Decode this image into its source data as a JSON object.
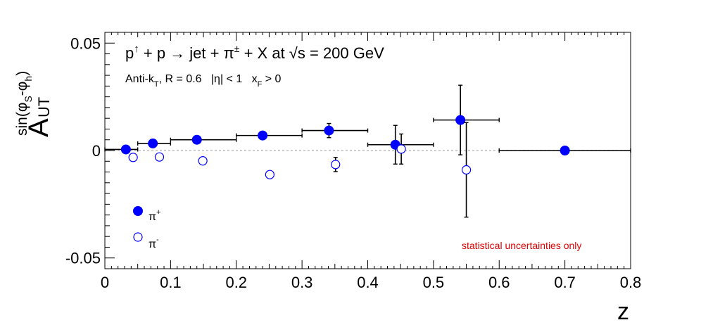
{
  "chart_data": {
    "type": "scatter",
    "title": "p↑ + p → jet + π± + X at √s = 200 GeV",
    "title_parts": {
      "p": "p",
      "uparrow": "↑",
      "plus_p": " + p ",
      "arrow": "→",
      "jet": " jet + π",
      "pm": "±",
      "rest": " + X at ",
      "sqrt": "√s = 200 GeV"
    },
    "subtitle": "Anti-kT, R = 0.6   |η| < 1   xF > 0",
    "subtitle_parts": {
      "antik": "Anti-k",
      "t": "T",
      "r": ", R = 0.6   |η| < 1   x",
      "f": "F",
      "gt": " > 0"
    },
    "xlabel": "z",
    "ylabel": "A_UT^{sin(φS-φh)}",
    "ylabel_parts": {
      "A": "A",
      "UT": "UT",
      "sin": "sin(φ",
      "S": "S",
      "mid": "-φ",
      "h": "h",
      "close": ")"
    },
    "xlim": [
      0,
      0.8
    ],
    "ylim": [
      -0.055,
      0.055
    ],
    "x_ticks": [
      0,
      0.1,
      0.2,
      0.3,
      0.4,
      0.5,
      0.6,
      0.7,
      0.8
    ],
    "x_tick_labels": [
      "0",
      "0.1",
      "0.2",
      "0.3",
      "0.4",
      "0.5",
      "0.6",
      "0.7",
      "0.8"
    ],
    "y_ticks": [
      -0.05,
      0,
      0.05
    ],
    "y_tick_labels": [
      "-0.05",
      "0",
      "0.05"
    ],
    "zero_line": true,
    "grid": false,
    "legend_position": "bottom-left",
    "legend": [
      {
        "label": "π",
        "sup": "+",
        "marker": "filled-circle"
      },
      {
        "label": "π",
        "sup": "-",
        "marker": "open-circle"
      }
    ],
    "annotation": "statistical uncertainties only",
    "annotation_color": "#e00000",
    "marker_color": "#0000ff",
    "series": [
      {
        "name": "π+",
        "marker": "filled",
        "points": [
          {
            "x": 0.032,
            "y": 0.0005,
            "xlo": 0.0,
            "xhi": 0.05,
            "yerr": 0.0012
          },
          {
            "x": 0.073,
            "y": 0.0033,
            "xlo": 0.05,
            "xhi": 0.1,
            "yerr": 0.001
          },
          {
            "x": 0.14,
            "y": 0.005,
            "xlo": 0.1,
            "xhi": 0.2,
            "yerr": 0.001
          },
          {
            "x": 0.24,
            "y": 0.007,
            "xlo": 0.2,
            "xhi": 0.3,
            "yerr": 0.0012
          },
          {
            "x": 0.341,
            "y": 0.0093,
            "xlo": 0.3,
            "xhi": 0.4,
            "yerr": 0.0033
          },
          {
            "x": 0.442,
            "y": 0.0027,
            "xlo": 0.4,
            "xhi": 0.5,
            "yerr": 0.009
          },
          {
            "x": 0.541,
            "y": 0.0142,
            "xlo": 0.5,
            "xhi": 0.6,
            "yerr": 0.0162
          },
          {
            "x": 0.7,
            "y": 0.0,
            "xlo": 0.6,
            "xhi": 0.8,
            "yerr": 0.0
          }
        ]
      },
      {
        "name": "π-",
        "marker": "open",
        "points": [
          {
            "x": 0.043,
            "y": -0.0032,
            "yerr": 0.0
          },
          {
            "x": 0.083,
            "y": -0.003,
            "yerr": 0.0
          },
          {
            "x": 0.149,
            "y": -0.0048,
            "yerr": 0.0
          },
          {
            "x": 0.251,
            "y": -0.0112,
            "yerr": 0.0
          },
          {
            "x": 0.351,
            "y": -0.0065,
            "yerr": 0.0033
          },
          {
            "x": 0.451,
            "y": 0.0007,
            "yerr": 0.007
          },
          {
            "x": 0.55,
            "y": -0.009,
            "yerr": 0.022
          }
        ]
      }
    ]
  }
}
